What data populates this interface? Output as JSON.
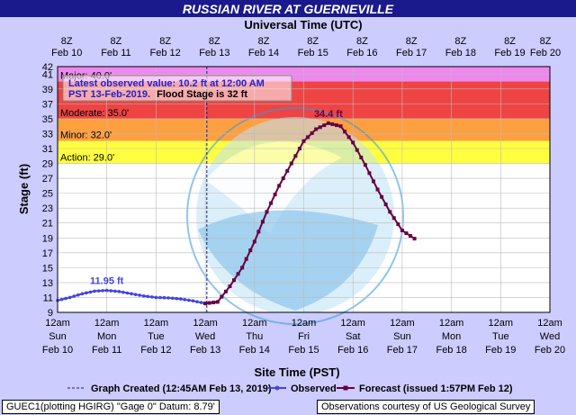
{
  "chart_data": {
    "type": "line",
    "title": "RUSSIAN RIVER AT GUERNEVILLE",
    "top_axis_title": "Universal Time (UTC)",
    "xlabel": "Site Time (PST)",
    "ylabel": "Stage (ft)",
    "ylim": [
      9,
      42
    ],
    "yticks": [
      9,
      11,
      13,
      15,
      17,
      19,
      21,
      23,
      25,
      27,
      29,
      31,
      33,
      35,
      37,
      39,
      41,
      42
    ],
    "x_ticks_bottom": [
      [
        "12am",
        "Sun",
        "Feb 10"
      ],
      [
        "12am",
        "Mon",
        "Feb 11"
      ],
      [
        "12am",
        "Tue",
        "Feb 12"
      ],
      [
        "12am",
        "Wed",
        "Feb 13"
      ],
      [
        "12am",
        "Thu",
        "Feb 14"
      ],
      [
        "12am",
        "Fri",
        "Feb 15"
      ],
      [
        "12am",
        "Sat",
        "Feb 16"
      ],
      [
        "12am",
        "Sun",
        "Feb 17"
      ],
      [
        "12am",
        "Mon",
        "Feb 18"
      ],
      [
        "12am",
        "Tue",
        "Feb 19"
      ],
      [
        "12am",
        "Wed",
        "Feb 20"
      ]
    ],
    "x_ticks_top": [
      [
        "8Z",
        "Feb 10"
      ],
      [
        "8Z",
        "Feb 11"
      ],
      [
        "8Z",
        "Feb 12"
      ],
      [
        "8Z",
        "Feb 13"
      ],
      [
        "8Z",
        "Feb 14"
      ],
      [
        "8Z",
        "Feb 15"
      ],
      [
        "8Z",
        "Feb 16"
      ],
      [
        "8Z",
        "Feb 17"
      ],
      [
        "8Z",
        "Feb 18"
      ],
      [
        "8Z",
        "Feb 19"
      ],
      [
        "8Z",
        "Feb 20"
      ]
    ],
    "grid": true,
    "flood_categories": [
      {
        "name": "Major",
        "label": "Major: 40.0'",
        "stage": 40.0,
        "color": "#ee88ee"
      },
      {
        "name": "Moderate",
        "label": "Moderate: 35.0'",
        "stage": 35.0,
        "color": "#ee4444"
      },
      {
        "name": "Minor",
        "label": "Minor: 32.0'",
        "stage": 32.0,
        "color": "#ffa040"
      },
      {
        "name": "Action",
        "label": "Action: 29.0'",
        "stage": 29.0,
        "color": "#ffff40"
      }
    ],
    "series": [
      {
        "name": "Observed",
        "color": "#4444dd",
        "points": [
          [
            "2019-02-10 00:00",
            10.6
          ],
          [
            "2019-02-10 06:00",
            11.0
          ],
          [
            "2019-02-10 12:00",
            11.5
          ],
          [
            "2019-02-10 18:00",
            11.85
          ],
          [
            "2019-02-11 00:00",
            11.95
          ],
          [
            "2019-02-11 06:00",
            11.8
          ],
          [
            "2019-02-11 12:00",
            11.5
          ],
          [
            "2019-02-11 18:00",
            11.2
          ],
          [
            "2019-02-12 00:00",
            11.0
          ],
          [
            "2019-02-12 06:00",
            10.95
          ],
          [
            "2019-02-12 12:00",
            10.8
          ],
          [
            "2019-02-12 18:00",
            10.55
          ],
          [
            "2019-02-13 00:00",
            10.2
          ]
        ]
      },
      {
        "name": "Forecast (issued 1:57PM Feb 12)",
        "color": "#660044",
        "points": [
          [
            "2019-02-13 00:00",
            10.2
          ],
          [
            "2019-02-13 06:00",
            10.4
          ],
          [
            "2019-02-13 12:00",
            12.5
          ],
          [
            "2019-02-13 18:00",
            15.0
          ],
          [
            "2019-02-14 00:00",
            18.5
          ],
          [
            "2019-02-14 06:00",
            22.5
          ],
          [
            "2019-02-14 12:00",
            26.0
          ],
          [
            "2019-02-14 18:00",
            29.0
          ],
          [
            "2019-02-15 00:00",
            32.0
          ],
          [
            "2019-02-15 06:00",
            33.6
          ],
          [
            "2019-02-15 12:00",
            34.4
          ],
          [
            "2019-02-15 18:00",
            34.0
          ],
          [
            "2019-02-16 00:00",
            31.8
          ],
          [
            "2019-02-16 06:00",
            28.8
          ],
          [
            "2019-02-16 12:00",
            25.5
          ],
          [
            "2019-02-16 18:00",
            22.5
          ],
          [
            "2019-02-17 00:00",
            20.0
          ],
          [
            "2019-02-17 06:00",
            18.9
          ]
        ]
      }
    ],
    "annotations": {
      "observed_peak": {
        "text": "11.95 ft",
        "at": "2019-02-11 00:00",
        "value": 11.95
      },
      "forecast_peak": {
        "text": "34.4 ft",
        "at": "2019-02-15 12:00",
        "value": 34.4
      },
      "graph_created_at": "2019-02-13 00:45",
      "latest_box": {
        "line1": "Latest observed value: 10.2 ft at 12:00 AM",
        "line2_part1": "PST 13-Feb-2019.",
        "line2_part2": "Flood Stage is 32 ft"
      }
    },
    "legend": {
      "position": "bottom",
      "items": [
        "Graph Created (12:45AM Feb 13, 2019)",
        "Observed",
        "Forecast (issued 1:57PM Feb 12)"
      ]
    },
    "footer_left": "GUEC1(plotting HGIRG) \"Gage 0\" Datum: 8.79'",
    "footer_right": "Observations courtesy of US Geological Survey",
    "watermark_text": "NATIONAL OCEANIC AND ATMOSPHERIC ADMINISTRATION · U.S. DEPARTMENT OF COMMERCE · NOAA"
  },
  "colors": {
    "title_bar": "#1a1a8c",
    "background": "#ccccff",
    "plot": "#ffffff",
    "grid": "#bbbbbb",
    "info_text": "#2222cc",
    "watermark": "#3399dd"
  }
}
